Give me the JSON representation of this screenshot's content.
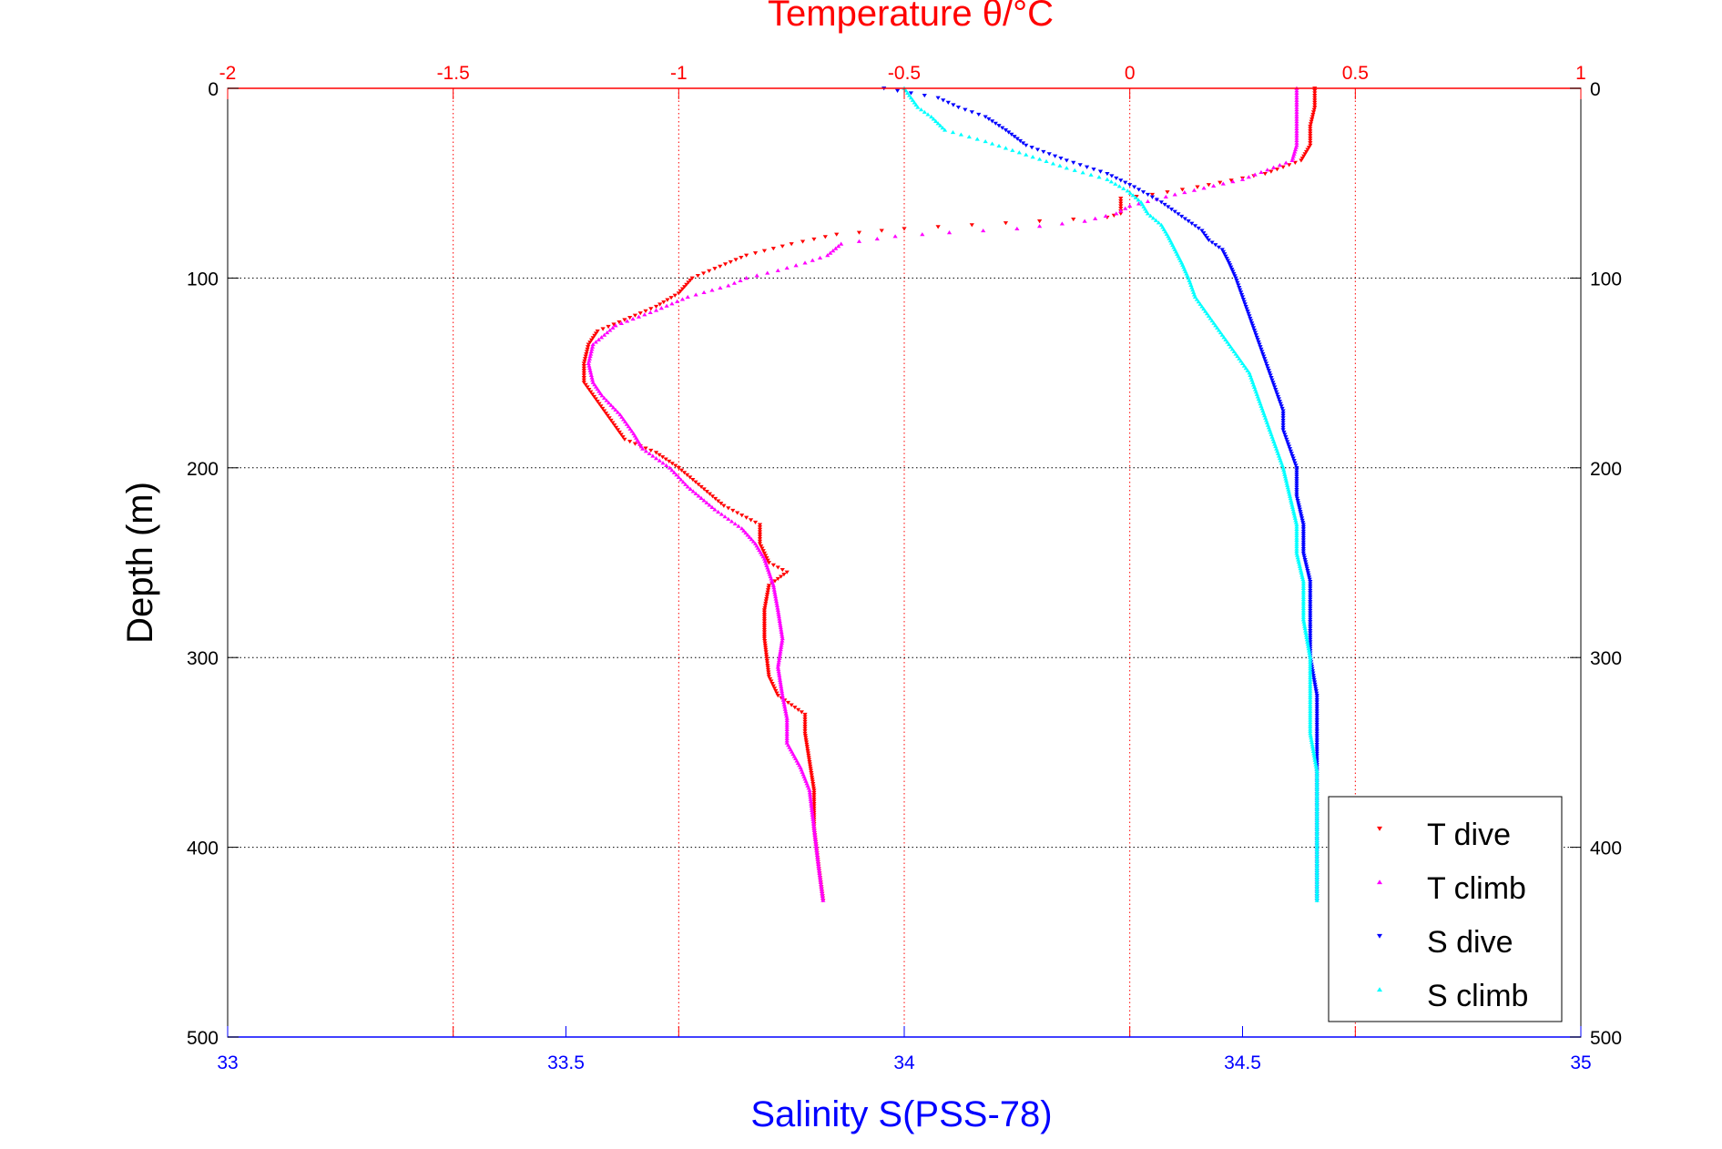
{
  "chart_data": {
    "type": "scatter",
    "title": "Temperature θ/°C",
    "xlabel": "Salinity S(PSS-78)",
    "ylabel": "Depth (m)",
    "top_axis": {
      "label": "Temperature θ/°C",
      "range": [
        -2,
        1
      ],
      "ticks": [
        -2,
        -1.5,
        -1,
        -0.5,
        0,
        0.5,
        1
      ],
      "tick_labels": [
        "-2",
        "-1.5",
        "-1",
        "-0.5",
        "0",
        "0.5",
        "1"
      ]
    },
    "bottom_axis": {
      "label": "Salinity S(PSS-78)",
      "range": [
        33,
        35
      ],
      "ticks": [
        33,
        33.5,
        34,
        34.5,
        35
      ],
      "tick_labels": [
        "33",
        "33.5",
        "34",
        "34.5",
        "35"
      ]
    },
    "y_axis": {
      "label": "Depth (m)",
      "range": [
        0,
        500
      ],
      "reversed": true,
      "ticks": [
        0,
        100,
        200,
        300,
        400,
        500
      ],
      "tick_labels": [
        "0",
        "100",
        "200",
        "300",
        "400",
        "500"
      ]
    },
    "grid": true,
    "legend_position": "bottom-right",
    "series": [
      {
        "name": "T dive",
        "axis": "temperature",
        "marker": "triangle-down",
        "color": "#ff0000",
        "points": [
          [
            0.41,
            0
          ],
          [
            0.41,
            10
          ],
          [
            0.4,
            20
          ],
          [
            0.4,
            30
          ],
          [
            0.38,
            38
          ],
          [
            0.3,
            45
          ],
          [
            0.15,
            52
          ],
          [
            0.05,
            56
          ],
          [
            -0.02,
            58
          ],
          [
            -0.02,
            62
          ],
          [
            -0.02,
            66
          ],
          [
            -0.05,
            68
          ],
          [
            -0.2,
            70
          ],
          [
            -0.35,
            72
          ],
          [
            -0.5,
            74
          ],
          [
            -0.65,
            77
          ],
          [
            -0.75,
            82
          ],
          [
            -0.85,
            88
          ],
          [
            -0.92,
            95
          ],
          [
            -0.97,
            100
          ],
          [
            -1.0,
            108
          ],
          [
            -1.05,
            115
          ],
          [
            -1.12,
            122
          ],
          [
            -1.18,
            128
          ],
          [
            -1.2,
            135
          ],
          [
            -1.21,
            145
          ],
          [
            -1.21,
            155
          ],
          [
            -1.18,
            165
          ],
          [
            -1.15,
            175
          ],
          [
            -1.12,
            185
          ],
          [
            -1.05,
            192
          ],
          [
            -1.0,
            200
          ],
          [
            -0.95,
            210
          ],
          [
            -0.9,
            220
          ],
          [
            -0.82,
            230
          ],
          [
            -0.82,
            240
          ],
          [
            -0.8,
            250
          ],
          [
            -0.76,
            255
          ],
          [
            -0.8,
            262
          ],
          [
            -0.81,
            275
          ],
          [
            -0.81,
            290
          ],
          [
            -0.8,
            310
          ],
          [
            -0.78,
            320
          ],
          [
            -0.72,
            330
          ],
          [
            -0.72,
            340
          ],
          [
            -0.71,
            355
          ],
          [
            -0.7,
            370
          ],
          [
            -0.7,
            390
          ],
          [
            -0.69,
            410
          ],
          [
            -0.68,
            428
          ]
        ]
      },
      {
        "name": "T climb",
        "axis": "temperature",
        "marker": "triangle-up",
        "color": "#ff00ff",
        "points": [
          [
            0.37,
            0
          ],
          [
            0.37,
            10
          ],
          [
            0.37,
            20
          ],
          [
            0.37,
            30
          ],
          [
            0.36,
            38
          ],
          [
            0.25,
            48
          ],
          [
            0.1,
            56
          ],
          [
            0.0,
            62
          ],
          [
            -0.03,
            66
          ],
          [
            -0.1,
            70
          ],
          [
            -0.25,
            74
          ],
          [
            -0.4,
            76
          ],
          [
            -0.52,
            78
          ],
          [
            -0.64,
            82
          ],
          [
            -0.67,
            88
          ],
          [
            -0.72,
            92
          ],
          [
            -0.78,
            96
          ],
          [
            -0.85,
            100
          ],
          [
            -0.89,
            104
          ],
          [
            -0.98,
            110
          ],
          [
            -1.05,
            117
          ],
          [
            -1.14,
            125
          ],
          [
            -1.19,
            135
          ],
          [
            -1.2,
            145
          ],
          [
            -1.19,
            155
          ],
          [
            -1.17,
            162
          ],
          [
            -1.13,
            172
          ],
          [
            -1.1,
            182
          ],
          [
            -1.08,
            190
          ],
          [
            -1.02,
            200
          ],
          [
            -0.98,
            210
          ],
          [
            -0.92,
            222
          ],
          [
            -0.86,
            232
          ],
          [
            -0.83,
            240
          ],
          [
            -0.81,
            248
          ],
          [
            -0.8,
            255
          ],
          [
            -0.79,
            262
          ],
          [
            -0.78,
            275
          ],
          [
            -0.77,
            290
          ],
          [
            -0.78,
            305
          ],
          [
            -0.77,
            320
          ],
          [
            -0.76,
            332
          ],
          [
            -0.76,
            345
          ],
          [
            -0.73,
            358
          ],
          [
            -0.71,
            370
          ],
          [
            -0.7,
            390
          ],
          [
            -0.69,
            410
          ],
          [
            -0.68,
            428
          ]
        ]
      },
      {
        "name": "S dive",
        "axis": "salinity",
        "marker": "triangle-down",
        "color": "#0000ff",
        "points": [
          [
            33.97,
            0
          ],
          [
            34.05,
            5
          ],
          [
            34.08,
            10
          ],
          [
            34.12,
            15
          ],
          [
            34.15,
            22
          ],
          [
            34.18,
            30
          ],
          [
            34.24,
            38
          ],
          [
            34.3,
            45
          ],
          [
            34.34,
            52
          ],
          [
            34.36,
            56
          ],
          [
            34.38,
            60
          ],
          [
            34.4,
            65
          ],
          [
            34.42,
            70
          ],
          [
            34.44,
            75
          ],
          [
            34.45,
            80
          ],
          [
            34.47,
            85
          ],
          [
            34.48,
            92
          ],
          [
            34.49,
            100
          ],
          [
            34.5,
            110
          ],
          [
            34.51,
            120
          ],
          [
            34.52,
            130
          ],
          [
            34.53,
            140
          ],
          [
            34.54,
            150
          ],
          [
            34.55,
            160
          ],
          [
            34.56,
            170
          ],
          [
            34.56,
            180
          ],
          [
            34.57,
            190
          ],
          [
            34.58,
            200
          ],
          [
            34.58,
            215
          ],
          [
            34.59,
            230
          ],
          [
            34.59,
            245
          ],
          [
            34.6,
            260
          ],
          [
            34.6,
            280
          ],
          [
            34.6,
            300
          ],
          [
            34.61,
            320
          ],
          [
            34.61,
            340
          ],
          [
            34.61,
            360
          ],
          [
            34.61,
            380
          ],
          [
            34.61,
            400
          ],
          [
            34.61,
            428
          ]
        ]
      },
      {
        "name": "S climb",
        "axis": "salinity",
        "marker": "triangle-up",
        "color": "#00ffff",
        "points": [
          [
            34.0,
            0
          ],
          [
            34.01,
            5
          ],
          [
            34.02,
            10
          ],
          [
            34.04,
            15
          ],
          [
            34.06,
            22
          ],
          [
            34.12,
            28
          ],
          [
            34.18,
            35
          ],
          [
            34.24,
            42
          ],
          [
            34.3,
            48
          ],
          [
            34.33,
            54
          ],
          [
            34.35,
            60
          ],
          [
            34.36,
            66
          ],
          [
            34.38,
            72
          ],
          [
            34.39,
            78
          ],
          [
            34.4,
            85
          ],
          [
            34.41,
            92
          ],
          [
            34.42,
            100
          ],
          [
            34.43,
            110
          ],
          [
            34.45,
            120
          ],
          [
            34.47,
            130
          ],
          [
            34.49,
            140
          ],
          [
            34.51,
            150
          ],
          [
            34.52,
            160
          ],
          [
            34.53,
            170
          ],
          [
            34.54,
            180
          ],
          [
            34.55,
            190
          ],
          [
            34.56,
            200
          ],
          [
            34.57,
            215
          ],
          [
            34.58,
            230
          ],
          [
            34.58,
            245
          ],
          [
            34.59,
            260
          ],
          [
            34.59,
            280
          ],
          [
            34.6,
            300
          ],
          [
            34.6,
            320
          ],
          [
            34.6,
            340
          ],
          [
            34.61,
            360
          ],
          [
            34.61,
            380
          ],
          [
            34.61,
            400
          ],
          [
            34.61,
            428
          ]
        ]
      }
    ]
  }
}
